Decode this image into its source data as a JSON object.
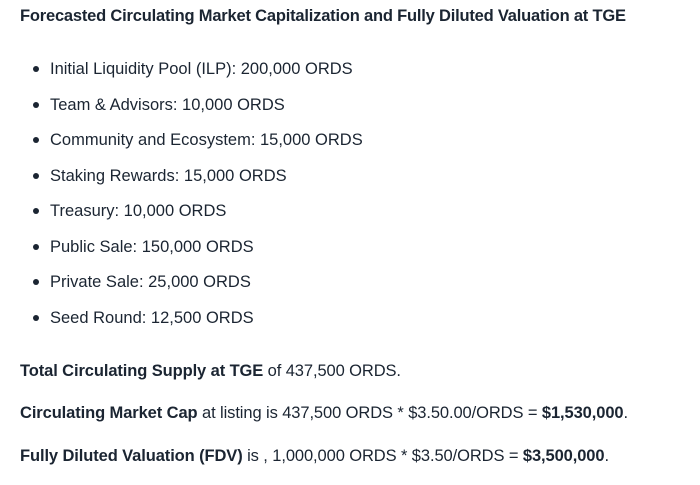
{
  "colors": {
    "text": "#1b2532",
    "background": "#ffffff"
  },
  "heading": "Forecasted Circulating Market Capitalization and Fully Diluted Valuation at TGE",
  "allocations": [
    "Initial Liquidity Pool (ILP): 200,000 ORDS",
    "Team & Advisors: 10,000 ORDS",
    "Community and Ecosystem: 15,000 ORDS",
    "Staking Rewards: 15,000 ORDS",
    "Treasury: 10,000 ORDS",
    "Public Sale: 150,000 ORDS",
    "Private Sale: 25,000 ORDS",
    "Seed Round: 12,500 ORDS"
  ],
  "summary": {
    "total_supply": {
      "bold": "Total Circulating Supply at TGE",
      "rest": " of 437,500 ORDS."
    },
    "market_cap": {
      "bold": "Circulating Market Cap",
      "mid": " at listing is 437,500 ORDS * $3.50.00/ORDS = ",
      "bold_value": "$1,530,000",
      "end": "."
    },
    "fdv": {
      "bold": "Fully Diluted Valuation (FDV)",
      "mid": " is , 1,000,000 ORDS * $3.50/ORDS = ",
      "bold_value": "$3,500,000",
      "end": "."
    }
  }
}
